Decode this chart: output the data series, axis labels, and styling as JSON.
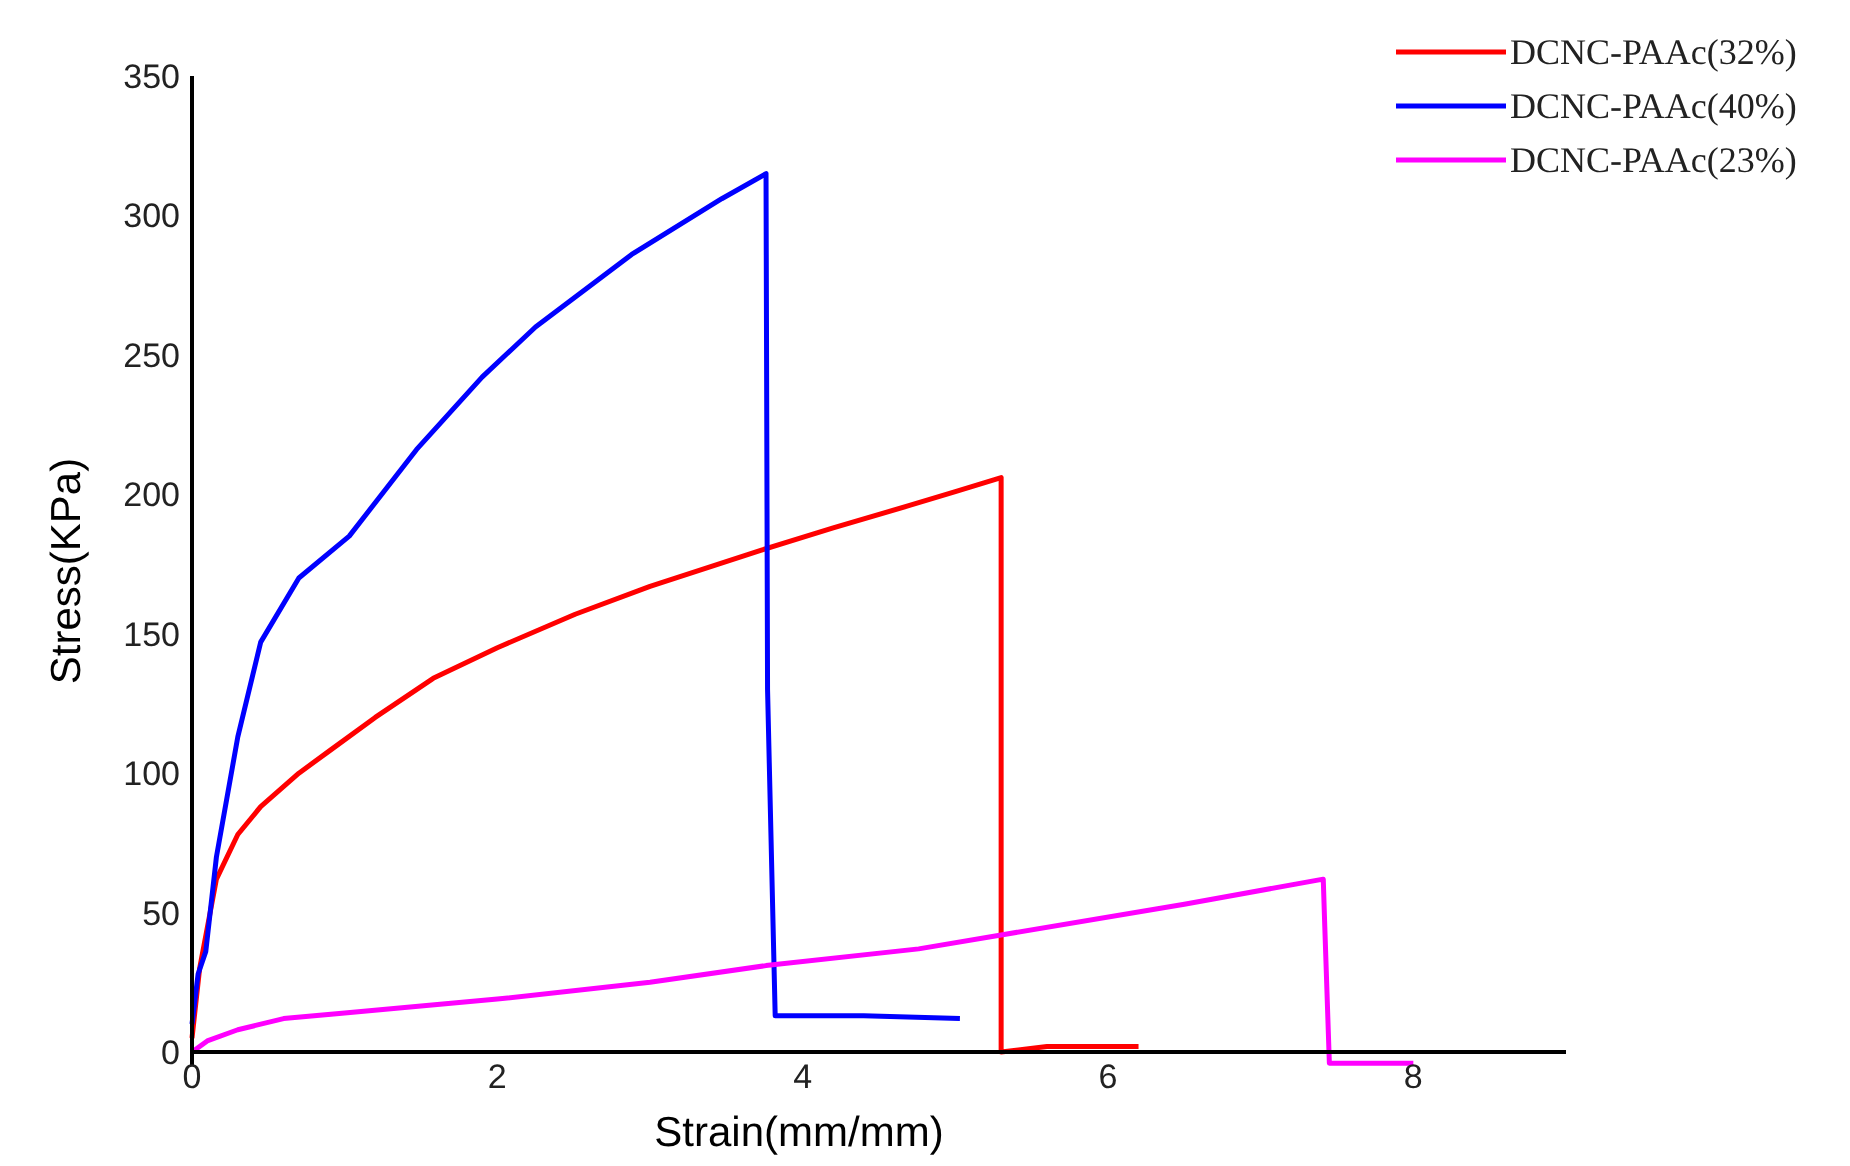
{
  "chart_data": {
    "type": "line",
    "xlabel": "Strain(mm/mm)",
    "ylabel": "Stress(KPa)",
    "xlim": [
      0,
      9
    ],
    "xticks": [
      0,
      2,
      4,
      6,
      8
    ],
    "ylim": [
      -5,
      350
    ],
    "yticks": [
      0,
      50,
      100,
      150,
      200,
      250,
      300,
      350
    ],
    "grid": false,
    "legend": "top right",
    "series": [
      {
        "name": "DCNC-PAAc(32%)",
        "color": "#ff0000",
        "x": [
          0,
          0.05,
          0.16,
          0.3,
          0.45,
          0.7,
          0.9,
          1.2,
          1.58,
          2,
          2.51,
          3,
          3.73,
          4.2,
          4.7,
          5.0,
          5.3,
          5.3,
          5.6,
          6.2
        ],
        "values": [
          5,
          30,
          62,
          78,
          88,
          100,
          108,
          120,
          134,
          145,
          157,
          167,
          180,
          188,
          196,
          201,
          206,
          0,
          2,
          2
        ]
      },
      {
        "name": "DCNC-PAAc(40%)",
        "color": "#0000ff",
        "x": [
          0,
          0.04,
          0.09,
          0.16,
          0.3,
          0.45,
          0.7,
          1.03,
          1.47,
          1.9,
          2.25,
          2.88,
          3.47,
          3.76,
          3.77,
          3.82,
          4.4,
          5.03
        ],
        "values": [
          10,
          28,
          36,
          70,
          113,
          147,
          170,
          185,
          216,
          242,
          260,
          286,
          306,
          315,
          130,
          13,
          13,
          12
        ]
      },
      {
        "name": "DCNC-PAAc(23%)",
        "color": "#ff00ff",
        "x": [
          0,
          0.1,
          0.3,
          0.6,
          1,
          2,
          3,
          3.76,
          4.76,
          5.3,
          6.5,
          7.41,
          7.42,
          7.45,
          8.0
        ],
        "values": [
          0,
          4,
          8,
          12,
          14,
          19,
          25,
          31,
          37,
          42,
          53,
          62,
          45,
          -4,
          -4
        ]
      }
    ]
  }
}
